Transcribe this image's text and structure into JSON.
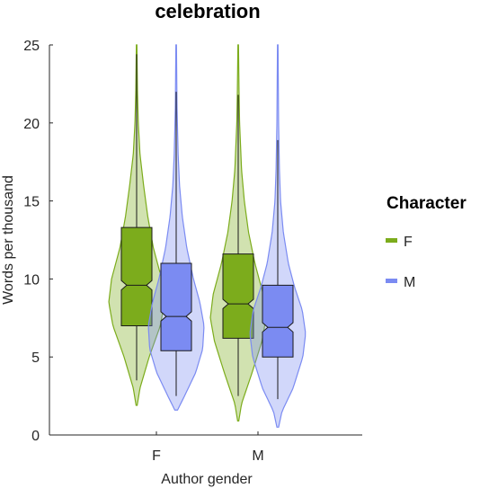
{
  "chart_data": {
    "type": "violin",
    "title": "celebration",
    "xlabel": "Author gender",
    "ylabel": "Words per thousand",
    "categories": [
      "F",
      "M"
    ],
    "ylim": [
      0,
      25
    ],
    "yticks": [
      0,
      5,
      10,
      15,
      20,
      25
    ],
    "grid": false,
    "legend": {
      "title": "Character",
      "placement": "right",
      "entries": [
        "F",
        "M"
      ]
    },
    "series": [
      {
        "name": "F",
        "color": "#7cac1c",
        "groups": [
          {
            "category": "F",
            "violin_min": 1.9,
            "violin_max": 25,
            "whisker_low": 3.5,
            "whisker_high": 24.4,
            "q1": 7.0,
            "median": 9.6,
            "q3": 13.3,
            "notch_low": 9.3,
            "notch_high": 9.9,
            "density": [
              [
                1.9,
                0.02
              ],
              [
                3,
                0.12
              ],
              [
                5,
                0.45
              ],
              [
                7,
                0.85
              ],
              [
                8.5,
                1.0
              ],
              [
                10,
                0.9
              ],
              [
                12,
                0.6
              ],
              [
                14,
                0.4
              ],
              [
                16,
                0.25
              ],
              [
                18,
                0.12
              ],
              [
                20,
                0.06
              ],
              [
                22,
                0.03
              ],
              [
                25,
                0.01
              ]
            ]
          },
          {
            "category": "M",
            "violin_min": 0.9,
            "violin_max": 25,
            "whisker_low": 2.5,
            "whisker_high": 21.8,
            "q1": 6.2,
            "median": 8.4,
            "q3": 11.6,
            "notch_low": 8.1,
            "notch_high": 8.7,
            "density": [
              [
                0.9,
                0.02
              ],
              [
                2,
                0.12
              ],
              [
                4,
                0.5
              ],
              [
                6,
                0.85
              ],
              [
                7.5,
                1.0
              ],
              [
                9,
                0.9
              ],
              [
                11,
                0.6
              ],
              [
                13,
                0.37
              ],
              [
                15,
                0.22
              ],
              [
                17,
                0.12
              ],
              [
                20,
                0.05
              ],
              [
                22,
                0.03
              ],
              [
                25,
                0.01
              ]
            ]
          }
        ]
      },
      {
        "name": "M",
        "color": "#7b8bf2",
        "groups": [
          {
            "category": "F",
            "violin_min": 1.6,
            "violin_max": 25,
            "whisker_low": 2.5,
            "whisker_high": 22.0,
            "q1": 5.4,
            "median": 7.6,
            "q3": 11.0,
            "notch_low": 7.3,
            "notch_high": 7.9,
            "density": [
              [
                1.6,
                0.05
              ],
              [
                2.5,
                0.3
              ],
              [
                4,
                0.7
              ],
              [
                5.5,
                0.95
              ],
              [
                7,
                1.0
              ],
              [
                8.5,
                0.85
              ],
              [
                10,
                0.62
              ],
              [
                12,
                0.38
              ],
              [
                14,
                0.22
              ],
              [
                16,
                0.12
              ],
              [
                18,
                0.07
              ],
              [
                21,
                0.03
              ],
              [
                25,
                0.01
              ]
            ]
          },
          {
            "category": "M",
            "violin_min": 0.5,
            "violin_max": 25,
            "whisker_low": 2.3,
            "whisker_high": 18.9,
            "q1": 5.0,
            "median": 6.9,
            "q3": 9.6,
            "notch_low": 6.6,
            "notch_high": 7.2,
            "density": [
              [
                0.5,
                0.03
              ],
              [
                1.5,
                0.15
              ],
              [
                3,
                0.55
              ],
              [
                5,
                0.9
              ],
              [
                6.5,
                1.0
              ],
              [
                8,
                0.88
              ],
              [
                9.5,
                0.6
              ],
              [
                11,
                0.38
              ],
              [
                13,
                0.2
              ],
              [
                15,
                0.1
              ],
              [
                17,
                0.06
              ],
              [
                20,
                0.03
              ],
              [
                25,
                0.01
              ]
            ]
          }
        ]
      }
    ]
  }
}
